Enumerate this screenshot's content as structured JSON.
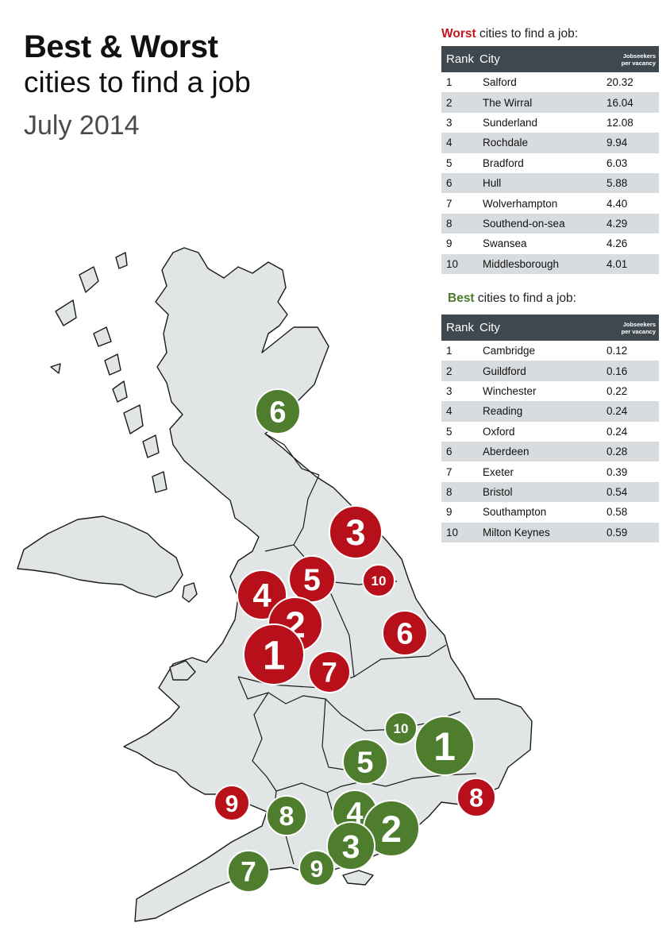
{
  "title": {
    "line1": "Best & Worst",
    "line2": "cities to find a job",
    "date": "July 2014"
  },
  "colors": {
    "worst": "#c8141e",
    "best": "#4a7a30",
    "marker_worst": "#b8101a",
    "marker_best": "#4e7d2e",
    "header": "#3f484f",
    "land": "#e2e5e6"
  },
  "worst_table": {
    "title_keyword": "Worst",
    "title_rest": " cities to find a job:",
    "col_rank": "Rank",
    "col_city": "City",
    "col_value_1": "Jobseekers",
    "col_value_2": "per vacancy",
    "rows": [
      {
        "rank": "1",
        "city": "Salford",
        "value": "20.32"
      },
      {
        "rank": "2",
        "city": "The Wirral",
        "value": "16.04"
      },
      {
        "rank": "3",
        "city": "Sunderland",
        "value": "12.08"
      },
      {
        "rank": "4",
        "city": "Rochdale",
        "value": "9.94"
      },
      {
        "rank": "5",
        "city": "Bradford",
        "value": "6.03"
      },
      {
        "rank": "6",
        "city": "Hull",
        "value": "5.88"
      },
      {
        "rank": "7",
        "city": "Wolverhampton",
        "value": "4.40"
      },
      {
        "rank": "8",
        "city": "Southend-on-sea",
        "value": "4.29"
      },
      {
        "rank": "9",
        "city": "Swansea",
        "value": "4.26"
      },
      {
        "rank": "10",
        "city": "Middlesborough",
        "value": "4.01"
      }
    ]
  },
  "best_table": {
    "title_keyword": "Best",
    "title_rest": " cities to find a job:",
    "col_rank": "Rank",
    "col_city": "City",
    "col_value_1": "Jobseekers",
    "col_value_2": "per vacancy",
    "rows": [
      {
        "rank": "1",
        "city": "Cambridge",
        "value": "0.12"
      },
      {
        "rank": "2",
        "city": "Guildford",
        "value": "0.16"
      },
      {
        "rank": "3",
        "city": "Winchester",
        "value": "0.22"
      },
      {
        "rank": "4",
        "city": "Reading",
        "value": "0.24"
      },
      {
        "rank": "5",
        "city": "Oxford",
        "value": "0.24"
      },
      {
        "rank": "6",
        "city": "Aberdeen",
        "value": "0.28"
      },
      {
        "rank": "7",
        "city": "Exeter",
        "value": "0.39"
      },
      {
        "rank": "8",
        "city": "Bristol",
        "value": "0.54"
      },
      {
        "rank": "9",
        "city": "Southampton",
        "value": "0.58"
      },
      {
        "rank": "10",
        "city": "Milton Keynes",
        "value": "0.59"
      }
    ]
  },
  "map_markers": {
    "worst": [
      "1",
      "2",
      "3",
      "4",
      "5",
      "6",
      "7",
      "8",
      "9",
      "10"
    ],
    "best": [
      "1",
      "2",
      "3",
      "4",
      "5",
      "6",
      "7",
      "8",
      "9",
      "10"
    ]
  }
}
